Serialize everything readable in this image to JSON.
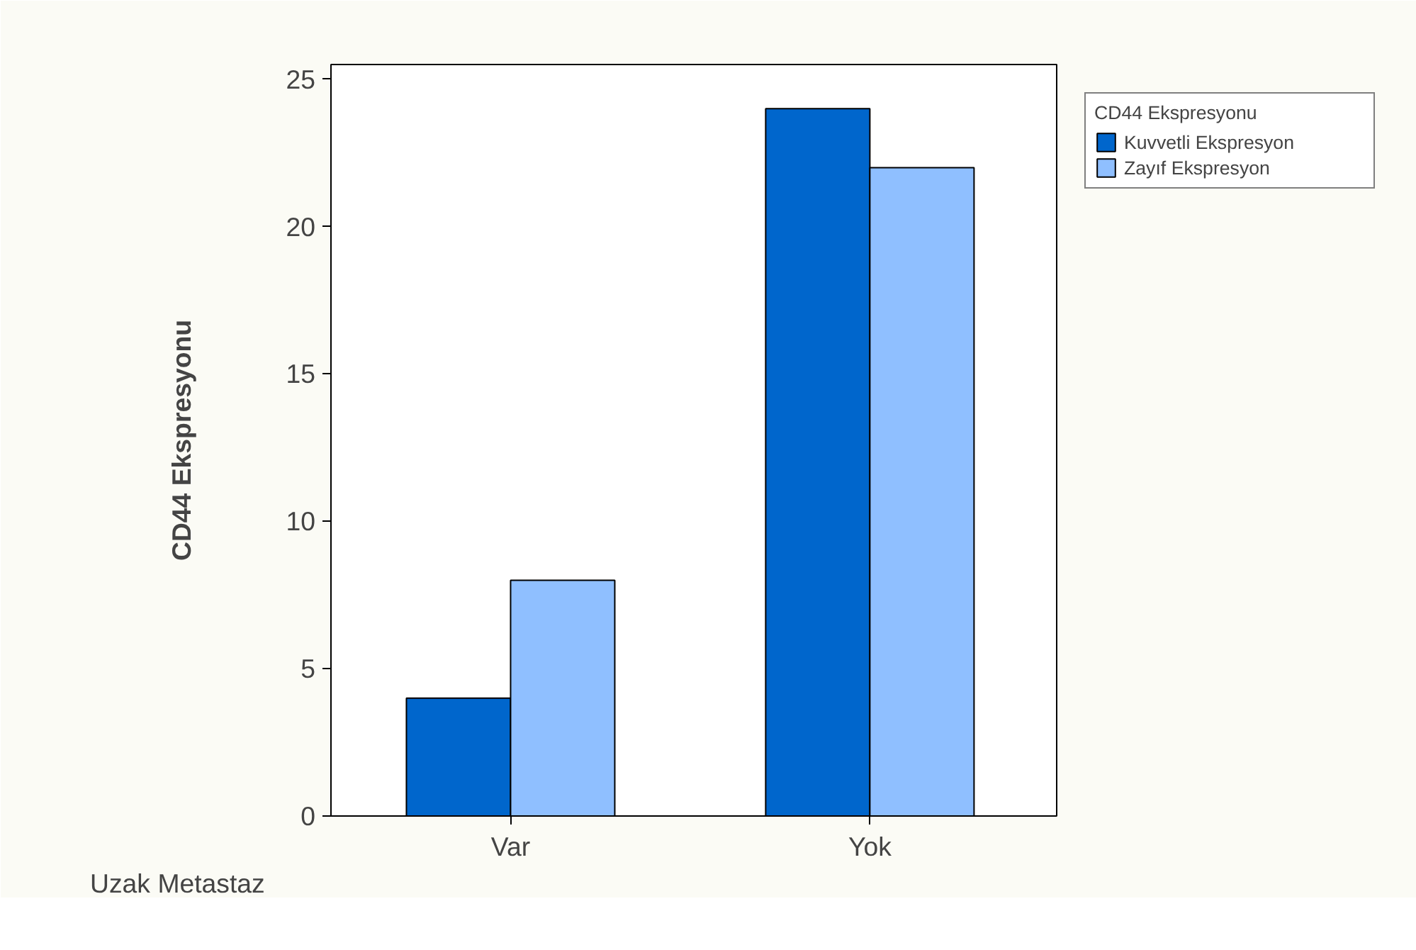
{
  "chart_data": {
    "type": "bar",
    "xlabel": "Uzak Metastaz",
    "ylabel": "CD44 Ekspresyonu",
    "legend_title": "CD44 Ekspresyonu",
    "categories": [
      "Var",
      "Yok"
    ],
    "series": [
      {
        "name": "Kuvvetli Ekspresyon",
        "color": "#0066cc",
        "values": [
          4,
          24
        ]
      },
      {
        "name": "Zayıf Ekspresyon",
        "color": "#8fbfff",
        "values": [
          8,
          22
        ]
      }
    ],
    "ylim": [
      0,
      25.5
    ],
    "yticks": [
      0,
      5,
      10,
      15,
      20,
      25
    ],
    "grid": false,
    "legend": "top right"
  }
}
